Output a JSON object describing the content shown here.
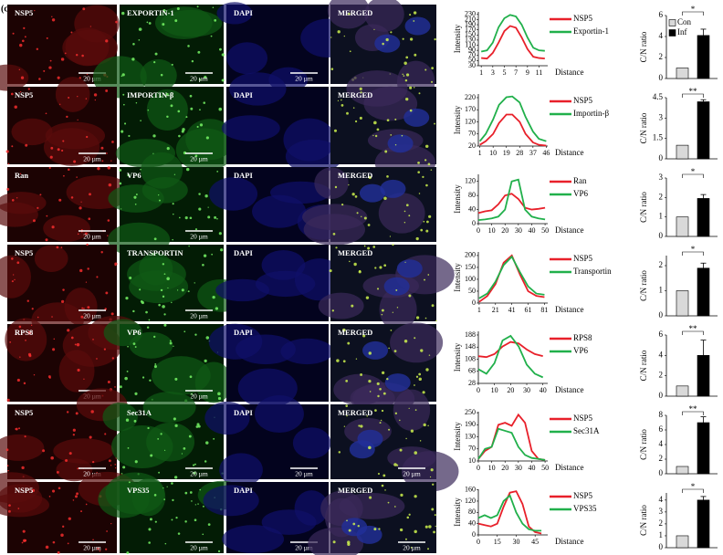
{
  "figure_label": "(c)",
  "rows": [
    {
      "panels": [
        {
          "label": "NSP5",
          "scale": "20 µm"
        },
        {
          "label": "EXPORTIN-1",
          "scale": "20 µm"
        },
        {
          "label": "DAPI",
          "scale": "20 µm"
        },
        {
          "label": "MERGED"
        }
      ],
      "line": {
        "type": "line",
        "xlabel": "Distance",
        "ylabel": "Intensity",
        "x": [
          1,
          2,
          3,
          4,
          5,
          6,
          7,
          8,
          9,
          10,
          11,
          12
        ],
        "xlim": [
          0.5,
          12.5
        ],
        "xticks": [
          1,
          3,
          5,
          7,
          9,
          11
        ],
        "ylim": [
          30,
          240
        ],
        "yticks": [
          30,
          50,
          70,
          90,
          110,
          130,
          150,
          170,
          190,
          210,
          230
        ],
        "series": [
          {
            "name": "NSP5",
            "color": "#e8202a",
            "values": [
              60,
              58,
              80,
              120,
              165,
              185,
              178,
              140,
              95,
              65,
              60,
              58
            ]
          },
          {
            "name": "Exportin-1",
            "color": "#21b04b",
            "values": [
              85,
              90,
              120,
              180,
              215,
              228,
              222,
              190,
              140,
              100,
              90,
              88
            ]
          }
        ]
      },
      "bar": {
        "type": "bar",
        "ylabel": "C/N ratio",
        "series": [
          {
            "name": "Con",
            "color": "#d9d9d9"
          },
          {
            "name": "Inf",
            "color": "#000000"
          }
        ],
        "values": [
          1,
          4.1
        ],
        "errors": [
          0,
          0.6
        ],
        "ylim": [
          0,
          6
        ],
        "yticks": [
          0,
          2,
          4,
          6
        ],
        "significance": "*",
        "legend": true
      }
    },
    {
      "panels": [
        {
          "label": "NSP5",
          "scale": "20 µm"
        },
        {
          "label": "IMPORTIN-β",
          "scale": "20 µm"
        },
        {
          "label": "DAPI"
        },
        {
          "label": "MERGED"
        }
      ],
      "line": {
        "type": "line",
        "xlabel": "Distance",
        "ylabel": "Intensity",
        "x": [
          1,
          5,
          10,
          14,
          19,
          23,
          28,
          32,
          37,
          41,
          46
        ],
        "xlim": [
          0,
          47
        ],
        "xticks": [
          1,
          10,
          19,
          28,
          37,
          46
        ],
        "ylim": [
          20,
          235
        ],
        "yticks": [
          20,
          70,
          120,
          170,
          220
        ],
        "series": [
          {
            "name": "NSP5",
            "color": "#e8202a",
            "values": [
              25,
              40,
              70,
              115,
              150,
              150,
              120,
              70,
              35,
              25,
              22
            ]
          },
          {
            "name": "Importin-β",
            "color": "#21b04b",
            "values": [
              40,
              70,
              130,
              190,
              222,
              225,
              200,
              140,
              80,
              50,
              40
            ]
          }
        ]
      },
      "bar": {
        "type": "bar",
        "ylabel": "C/N ratio",
        "series": [
          {
            "color": "#d9d9d9"
          },
          {
            "color": "#000000"
          }
        ],
        "values": [
          1,
          4.2
        ],
        "errors": [
          0,
          0.15
        ],
        "ylim": [
          0,
          4.5
        ],
        "yticks": [
          0,
          1.5,
          3,
          4.5
        ],
        "significance": "**"
      }
    },
    {
      "panels": [
        {
          "label": "Ran",
          "scale": "20 µm"
        },
        {
          "label": "VP6",
          "scale": "20 µm"
        },
        {
          "label": "DAPI"
        },
        {
          "label": "MERGED"
        }
      ],
      "line": {
        "type": "line",
        "xlabel": "Distance",
        "ylabel": "Intensity",
        "x": [
          0,
          5,
          10,
          15,
          20,
          25,
          30,
          35,
          40,
          45,
          50
        ],
        "xlim": [
          0,
          52
        ],
        "xticks": [
          0,
          10,
          20,
          30,
          40,
          50
        ],
        "ylim": [
          0,
          140
        ],
        "yticks": [
          0,
          40,
          80,
          120
        ],
        "series": [
          {
            "name": "Ran",
            "color": "#e8202a",
            "values": [
              30,
              35,
              38,
              55,
              80,
              85,
              70,
              45,
              40,
              42,
              45
            ]
          },
          {
            "name": "VP6",
            "color": "#21b04b",
            "values": [
              10,
              12,
              15,
              20,
              40,
              120,
              125,
              40,
              20,
              15,
              12
            ]
          }
        ]
      },
      "bar": {
        "type": "bar",
        "ylabel": "C/N ratio",
        "series": [
          {
            "color": "#d9d9d9"
          },
          {
            "color": "#000000"
          }
        ],
        "values": [
          1,
          1.95
        ],
        "errors": [
          0,
          0.2
        ],
        "ylim": [
          0,
          3
        ],
        "yticks": [
          0,
          1,
          2,
          3
        ],
        "significance": "*"
      }
    },
    {
      "panels": [
        {
          "label": "NSP5",
          "scale": "20 µm"
        },
        {
          "label": "TRANSPORTIN",
          "scale": "20 µm"
        },
        {
          "label": "DAPI"
        },
        {
          "label": "MERGED"
        }
      ],
      "line": {
        "type": "line",
        "xlabel": "Distance",
        "ylabel": "Intensity",
        "x": [
          1,
          11,
          21,
          31,
          41,
          51,
          61,
          71,
          81
        ],
        "xlim": [
          0,
          85
        ],
        "xticks": [
          1,
          21,
          41,
          61,
          81
        ],
        "ylim": [
          0,
          215
        ],
        "yticks": [
          0,
          50,
          100,
          150,
          200
        ],
        "series": [
          {
            "name": "NSP5",
            "color": "#e8202a",
            "values": [
              5,
              30,
              80,
              170,
              200,
              120,
              50,
              30,
              25
            ]
          },
          {
            "name": "Transportin",
            "color": "#21b04b",
            "values": [
              20,
              40,
              90,
              160,
              195,
              130,
              70,
              40,
              35
            ]
          }
        ]
      },
      "bar": {
        "type": "bar",
        "ylabel": "C/N ratio",
        "series": [
          {
            "color": "#d9d9d9"
          },
          {
            "color": "#000000"
          }
        ],
        "values": [
          1,
          1.9
        ],
        "errors": [
          0,
          0.2
        ],
        "ylim": [
          0,
          2.4
        ],
        "yticks": [
          0,
          1,
          2
        ],
        "significance": "*"
      }
    },
    {
      "panels": [
        {
          "label": "RPS8",
          "scale": "20 µm"
        },
        {
          "label": "VP6",
          "scale": "20 µm"
        },
        {
          "label": "DAPI"
        },
        {
          "label": "MERGED"
        }
      ],
      "line": {
        "type": "line",
        "xlabel": "Distance",
        "ylabel": "Intensity",
        "x": [
          0,
          5,
          10,
          15,
          20,
          25,
          30,
          35,
          40
        ],
        "xlim": [
          0,
          43
        ],
        "xticks": [
          0,
          10,
          20,
          30,
          40
        ],
        "ylim": [
          28,
          200
        ],
        "yticks": [
          28,
          68,
          108,
          148,
          188
        ],
        "series": [
          {
            "name": "RPS8",
            "color": "#e8202a",
            "values": [
              118,
              115,
              125,
              150,
              165,
              160,
              140,
              125,
              118
            ]
          },
          {
            "name": "VP6",
            "color": "#21b04b",
            "values": [
              75,
              60,
              95,
              170,
              185,
              150,
              90,
              60,
              48
            ]
          }
        ]
      },
      "bar": {
        "type": "bar",
        "ylabel": "C/N ratio",
        "series": [
          {
            "color": "#d9d9d9"
          },
          {
            "color": "#000000"
          }
        ],
        "values": [
          1,
          4
        ],
        "errors": [
          0,
          1.5
        ],
        "ylim": [
          0,
          6
        ],
        "yticks": [
          0,
          2,
          4,
          6
        ],
        "significance": "**"
      }
    },
    {
      "panels": [
        {
          "label": "NSP5",
          "scale": "20 µm"
        },
        {
          "label": "Sec31A",
          "scale": "20 µm"
        },
        {
          "label": "DAPI",
          "scale": "20 µm"
        },
        {
          "label": "MERGED",
          "scale": "20 µm"
        }
      ],
      "line": {
        "type": "line",
        "xlabel": "Distance",
        "ylabel": "Intensity",
        "x": [
          0,
          5,
          10,
          15,
          20,
          25,
          30,
          35,
          40,
          45,
          50
        ],
        "xlim": [
          0,
          52
        ],
        "xticks": [
          0,
          10,
          20,
          30,
          40,
          50
        ],
        "ylim": [
          10,
          255
        ],
        "yticks": [
          10,
          70,
          130,
          190,
          250
        ],
        "series": [
          {
            "name": "NSP5",
            "color": "#e8202a",
            "values": [
              20,
              60,
              80,
              190,
              200,
              185,
              240,
              200,
              60,
              20,
              15
            ]
          },
          {
            "name": "Sec31A",
            "color": "#21b04b",
            "values": [
              20,
              70,
              80,
              170,
              160,
              150,
              80,
              40,
              25,
              20,
              15
            ]
          }
        ]
      },
      "bar": {
        "type": "bar",
        "ylabel": "C/N ratio",
        "series": [
          {
            "color": "#d9d9d9"
          },
          {
            "color": "#000000"
          }
        ],
        "values": [
          1,
          7
        ],
        "errors": [
          0,
          0.8
        ],
        "ylim": [
          0,
          8
        ],
        "yticks": [
          0,
          2,
          4,
          6,
          8
        ],
        "significance": "**"
      }
    },
    {
      "panels": [
        {
          "label": "NSP5",
          "scale": "20 µm"
        },
        {
          "label": "VPS35",
          "scale": "20 µm"
        },
        {
          "label": "DAPI",
          "scale": "20 µm"
        },
        {
          "label": "MERGED",
          "scale": "20 µm"
        }
      ],
      "line": {
        "type": "line",
        "xlabel": "Distance",
        "ylabel": "Intensity",
        "x": [
          0,
          5,
          10,
          15,
          20,
          25,
          30,
          35,
          40,
          45,
          50
        ],
        "xlim": [
          0,
          55
        ],
        "xticks": [
          0,
          15,
          30,
          45
        ],
        "ylim": [
          0,
          162
        ],
        "yticks": [
          0,
          40,
          80,
          120,
          160
        ],
        "series": [
          {
            "name": "NSP5",
            "color": "#e8202a",
            "values": [
              40,
              35,
              30,
              40,
              100,
              150,
              155,
              110,
              30,
              10,
              5
            ]
          },
          {
            "name": "VPS35",
            "color": "#21b04b",
            "values": [
              60,
              70,
              60,
              70,
              120,
              140,
              80,
              40,
              20,
              15,
              15
            ]
          }
        ]
      },
      "bar": {
        "type": "bar",
        "ylabel": "C/N ratio",
        "series": [
          {
            "color": "#d9d9d9"
          },
          {
            "color": "#000000"
          }
        ],
        "values": [
          1,
          4
        ],
        "errors": [
          0,
          0.3
        ],
        "ylim": [
          0,
          4.6
        ],
        "yticks": [
          0,
          1,
          2,
          3,
          4
        ],
        "significance": "*"
      }
    }
  ]
}
